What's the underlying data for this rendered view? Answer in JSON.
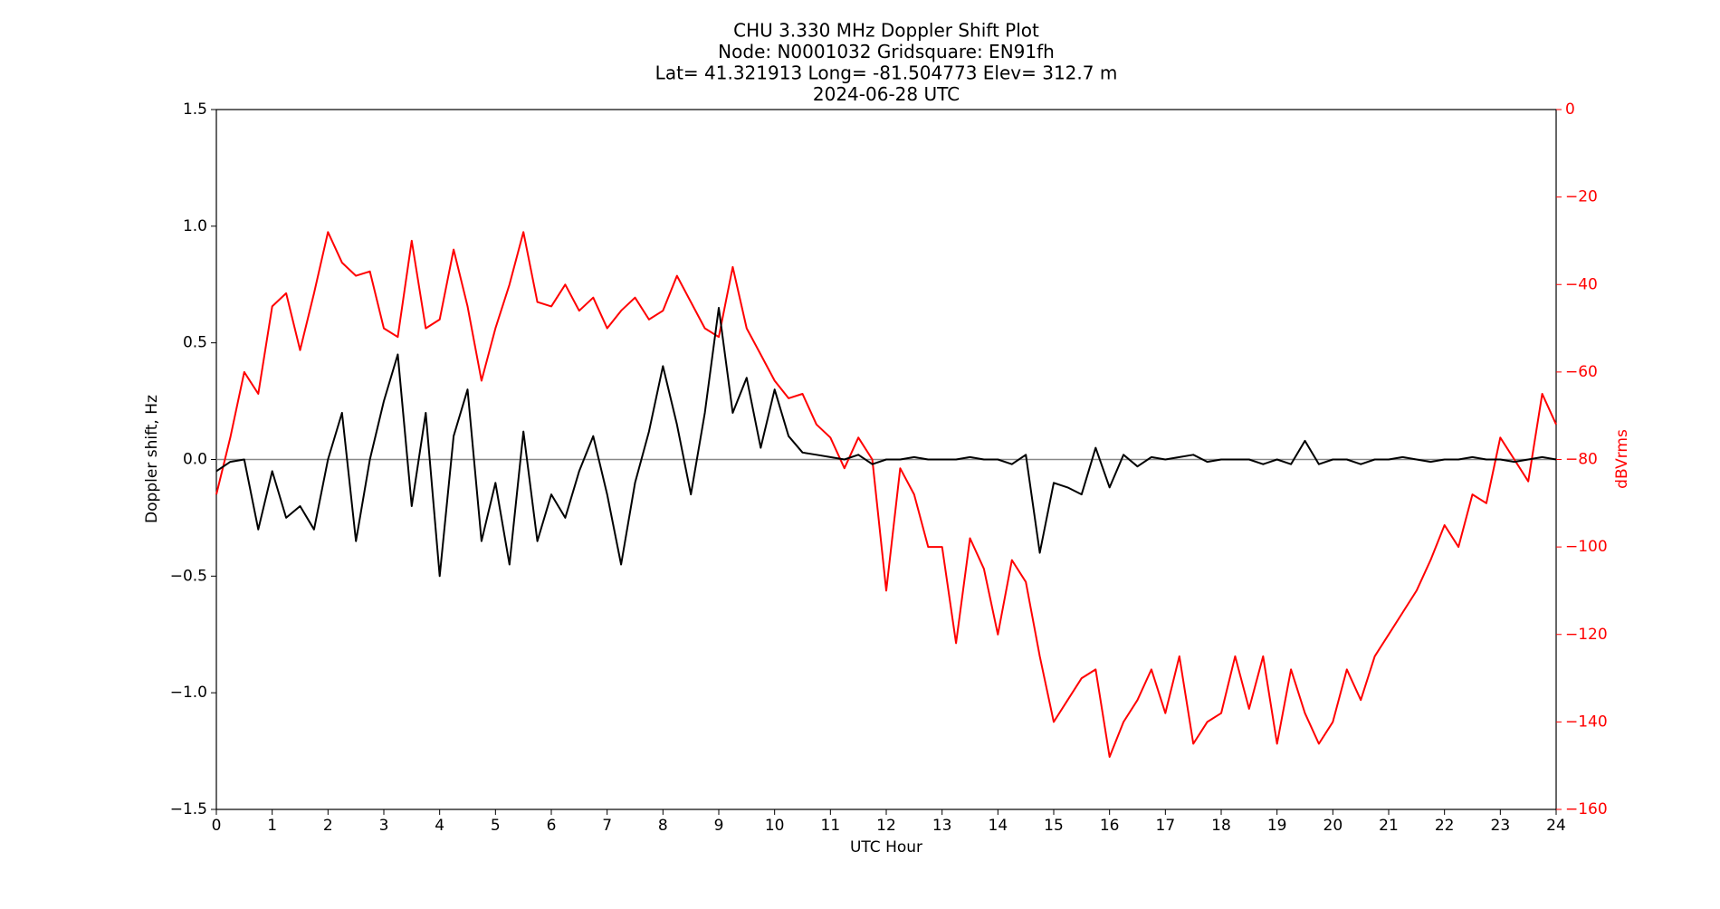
{
  "chart_data": {
    "type": "line",
    "title_lines": [
      "CHU 3.330 MHz Doppler Shift Plot",
      "Node:  N0001032     Gridsquare:  EN91fh",
      "Lat= 41.321913    Long= -81.504773    Elev= 312.7 m",
      "2024-06-28  UTC"
    ],
    "x_label": "UTC Hour",
    "y_label": "Doppler shift, Hz",
    "y2_label": "dBVrms",
    "xlim": [
      0,
      24
    ],
    "xticks": [
      0,
      1,
      2,
      3,
      4,
      5,
      6,
      7,
      8,
      9,
      10,
      11,
      12,
      13,
      14,
      15,
      16,
      17,
      18,
      19,
      20,
      21,
      22,
      23,
      24
    ],
    "ylim": [
      -1.5,
      1.5
    ],
    "yticks": [
      {
        "value": -1.5,
        "label": "−1.5"
      },
      {
        "value": -1,
        "label": "−1.0"
      },
      {
        "value": -0.5,
        "label": "−0.5"
      },
      {
        "value": 0,
        "label": "0.0"
      },
      {
        "value": 0.5,
        "label": "0.5"
      },
      {
        "value": 1,
        "label": "1.0"
      },
      {
        "value": 1.5,
        "label": "1.5"
      }
    ],
    "y2lim": [
      -160,
      0
    ],
    "y2ticks": [
      {
        "value": -160,
        "label": "−160"
      },
      {
        "value": -140,
        "label": "−140"
      },
      {
        "value": -120,
        "label": "−120"
      },
      {
        "value": -100,
        "label": "−100"
      },
      {
        "value": -80,
        "label": "−80"
      },
      {
        "value": -60,
        "label": "−60"
      },
      {
        "value": -40,
        "label": "−40"
      },
      {
        "value": -20,
        "label": "−20"
      },
      0
    ],
    "y2_color": "#ff0000",
    "x": [
      0,
      0.25,
      0.5,
      0.75,
      1,
      1.25,
      1.5,
      1.75,
      2,
      2.25,
      2.5,
      2.75,
      3,
      3.25,
      3.5,
      3.75,
      4,
      4.25,
      4.5,
      4.75,
      5,
      5.25,
      5.5,
      5.75,
      6,
      6.25,
      6.5,
      6.75,
      7,
      7.25,
      7.5,
      7.75,
      8,
      8.25,
      8.5,
      8.75,
      9,
      9.25,
      9.5,
      9.75,
      10,
      10.25,
      10.5,
      10.75,
      11,
      11.25,
      11.5,
      11.75,
      12,
      12.25,
      12.5,
      12.75,
      13,
      13.25,
      13.5,
      13.75,
      14,
      14.25,
      14.5,
      14.75,
      15,
      15.25,
      15.5,
      15.75,
      16,
      16.25,
      16.5,
      16.75,
      17,
      17.25,
      17.5,
      17.75,
      18,
      18.25,
      18.5,
      18.75,
      19,
      19.25,
      19.5,
      19.75,
      20,
      20.25,
      20.5,
      20.75,
      21,
      21.25,
      21.5,
      21.75,
      22,
      22.25,
      22.5,
      22.75,
      23,
      23.25,
      23.5,
      23.75,
      24
    ],
    "series": [
      {
        "color": "#000000",
        "values": [
          -0.05,
          -0.01,
          0.0,
          -0.3,
          -0.05,
          -0.25,
          -0.2,
          -0.3,
          0.0,
          0.2,
          -0.35,
          0.0,
          0.25,
          0.45,
          -0.2,
          0.2,
          -0.5,
          0.1,
          0.3,
          -0.35,
          -0.1,
          -0.45,
          0.12,
          -0.35,
          -0.15,
          -0.25,
          -0.05,
          0.1,
          -0.15,
          -0.45,
          -0.1,
          0.12,
          0.4,
          0.15,
          -0.15,
          0.2,
          0.65,
          0.2,
          0.35,
          0.05,
          0.3,
          0.1,
          0.03,
          0.02,
          0.01,
          0.0,
          0.02,
          -0.02,
          0,
          0,
          0.01,
          0,
          0,
          0,
          0.01,
          0,
          0,
          -0.02,
          0.02,
          -0.4,
          -0.1,
          -0.12,
          -0.15,
          0.05,
          -0.12,
          0.02,
          -0.03,
          0.01,
          0,
          0.01,
          0.02,
          -0.01,
          0,
          0,
          0,
          -0.02,
          0,
          -0.02,
          0.08,
          -0.02,
          0,
          0,
          -0.02,
          0,
          0,
          0.01,
          0,
          -0.01,
          0,
          0,
          0.01,
          0,
          0,
          -0.01,
          0,
          0.01,
          0
        ]
      },
      {
        "color": "#ff0000",
        "axis": "y2",
        "values": [
          -88,
          -75,
          -60,
          -65,
          -45,
          -42,
          -55,
          -42,
          -28,
          -35,
          -38,
          -37,
          -50,
          -52,
          -30,
          -50,
          -48,
          -32,
          -45,
          -62,
          -50,
          -40,
          -28,
          -44,
          -45,
          -40,
          -46,
          -43,
          -50,
          -46,
          -43,
          -48,
          -46,
          -38,
          -44,
          -50,
          -52,
          -36,
          -50,
          -56,
          -62,
          -66,
          -65,
          -72,
          -75,
          -82,
          -75,
          -80,
          -110,
          -82,
          -88,
          -100,
          -100,
          -122,
          -98,
          -105,
          -120,
          -103,
          -108,
          -125,
          -140,
          -135,
          -130,
          -128,
          -148,
          -140,
          -135,
          -128,
          -138,
          -125,
          -145,
          -140,
          -138,
          -125,
          -137,
          -125,
          -145,
          -128,
          -138,
          -145,
          -140,
          -128,
          -135,
          -125,
          -120,
          -115,
          -110,
          -103,
          -95,
          -100,
          -88,
          -90,
          -75,
          -80,
          -85,
          -65,
          -72
        ]
      }
    ]
  }
}
